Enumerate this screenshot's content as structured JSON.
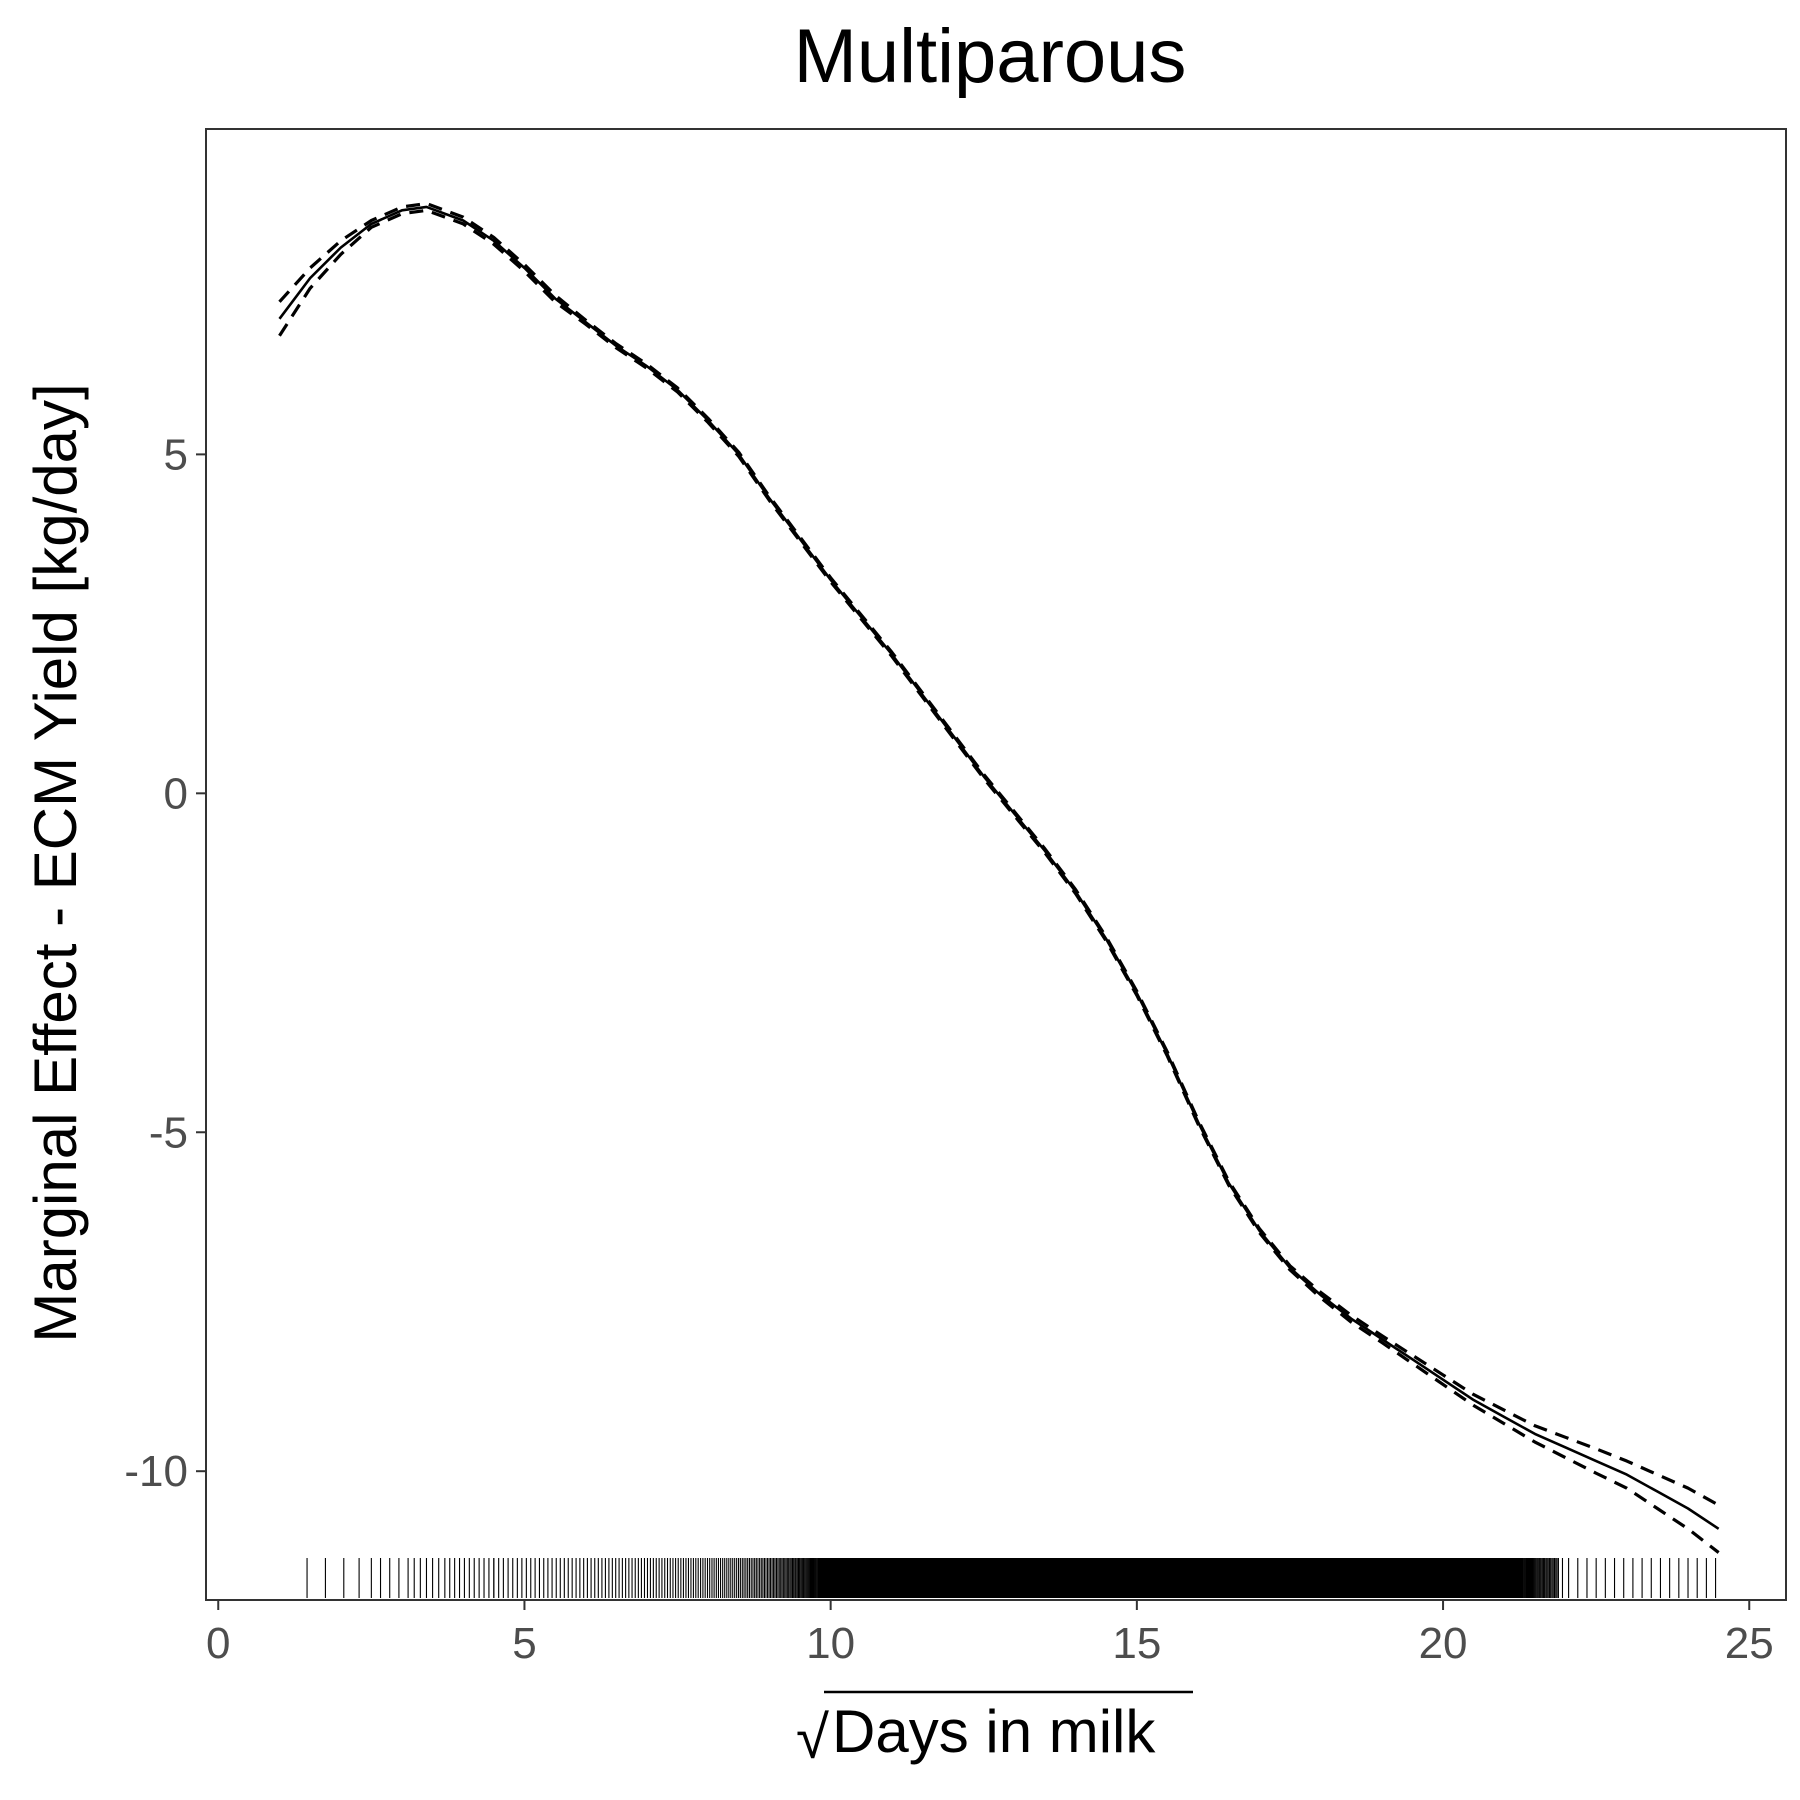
{
  "chart_data": {
    "type": "line",
    "title": "Multiparous",
    "xlabel": "Days in milk",
    "xlabel_prefix_symbol": "√",
    "ylabel": "Marginal Effect - ECM Yield [kg/day]",
    "xlim": [
      -0.2,
      25.6
    ],
    "ylim": [
      -11.9,
      9.8
    ],
    "x_ticks": [
      0,
      5,
      10,
      15,
      20,
      25
    ],
    "x_tick_labels": [
      "0",
      "5",
      "10",
      "15",
      "20",
      "25"
    ],
    "y_ticks": [
      5,
      0,
      -5,
      -10
    ],
    "y_tick_labels": [
      "5",
      "0",
      "-5",
      "-10"
    ],
    "grid": false,
    "legend": "none",
    "colors": {
      "line": "#000000",
      "panel_border": "#333333",
      "tick_label": "#4d4d4d"
    },
    "series": [
      {
        "role": "estimate",
        "style": "solid",
        "x": [
          1.0,
          1.5,
          2.0,
          2.5,
          3.0,
          3.4,
          4.0,
          4.5,
          5.0,
          5.5,
          6.0,
          6.5,
          7.0,
          7.5,
          8.0,
          8.5,
          9.0,
          9.5,
          10.0,
          10.5,
          11.0,
          11.5,
          12.0,
          12.5,
          13.0,
          13.5,
          14.0,
          14.5,
          15.0,
          15.5,
          16.0,
          16.5,
          17.0,
          17.5,
          18.0,
          18.5,
          19.0,
          19.5,
          20.0,
          20.5,
          21.0,
          21.5,
          22.0,
          22.5,
          23.0,
          23.5,
          24.0,
          24.5
        ],
        "values": [
          7.0,
          7.6,
          8.05,
          8.4,
          8.6,
          8.65,
          8.45,
          8.15,
          7.75,
          7.3,
          6.95,
          6.6,
          6.3,
          5.95,
          5.5,
          5.0,
          4.35,
          3.75,
          3.15,
          2.6,
          2.05,
          1.45,
          0.85,
          0.25,
          -0.3,
          -0.85,
          -1.45,
          -2.15,
          -2.95,
          -3.85,
          -4.85,
          -5.75,
          -6.45,
          -7.0,
          -7.4,
          -7.75,
          -8.05,
          -8.35,
          -8.65,
          -8.95,
          -9.2,
          -9.45,
          -9.65,
          -9.85,
          -10.05,
          -10.3,
          -10.55,
          -10.85
        ]
      },
      {
        "role": "upper-ci",
        "style": "dashed",
        "x": [
          1.0,
          1.5,
          2.0,
          2.5,
          3.0,
          3.4,
          4.0,
          4.5,
          5.0,
          5.5,
          6.0,
          6.5,
          7.0,
          7.5,
          8.0,
          8.5,
          9.0,
          9.5,
          10.0,
          10.5,
          11.0,
          11.5,
          12.0,
          12.5,
          13.0,
          13.5,
          14.0,
          14.5,
          15.0,
          15.5,
          16.0,
          16.5,
          17.0,
          17.5,
          18.0,
          18.5,
          19.0,
          19.5,
          20.0,
          20.5,
          21.0,
          21.5,
          22.0,
          22.5,
          23.0,
          23.5,
          24.0,
          24.5
        ],
        "values": [
          7.25,
          7.75,
          8.15,
          8.45,
          8.65,
          8.7,
          8.5,
          8.2,
          7.8,
          7.35,
          6.98,
          6.63,
          6.33,
          5.98,
          5.53,
          5.03,
          4.38,
          3.78,
          3.18,
          2.63,
          2.08,
          1.48,
          0.88,
          0.28,
          -0.27,
          -0.82,
          -1.42,
          -2.12,
          -2.92,
          -3.82,
          -4.82,
          -5.72,
          -6.42,
          -6.97,
          -7.36,
          -7.7,
          -8.0,
          -8.29,
          -8.58,
          -8.87,
          -9.1,
          -9.33,
          -9.5,
          -9.67,
          -9.85,
          -10.05,
          -10.25,
          -10.5
        ]
      },
      {
        "role": "lower-ci",
        "style": "dashed",
        "x": [
          1.0,
          1.5,
          2.0,
          2.5,
          3.0,
          3.4,
          4.0,
          4.5,
          5.0,
          5.5,
          6.0,
          6.5,
          7.0,
          7.5,
          8.0,
          8.5,
          9.0,
          9.5,
          10.0,
          10.5,
          11.0,
          11.5,
          12.0,
          12.5,
          13.0,
          13.5,
          14.0,
          14.5,
          15.0,
          15.5,
          16.0,
          16.5,
          17.0,
          17.5,
          18.0,
          18.5,
          19.0,
          19.5,
          20.0,
          20.5,
          21.0,
          21.5,
          22.0,
          22.5,
          23.0,
          23.5,
          24.0,
          24.5
        ],
        "values": [
          6.75,
          7.45,
          7.95,
          8.35,
          8.55,
          8.6,
          8.4,
          8.1,
          7.7,
          7.25,
          6.92,
          6.57,
          6.27,
          5.92,
          5.47,
          4.97,
          4.32,
          3.72,
          3.12,
          2.57,
          2.02,
          1.42,
          0.82,
          0.22,
          -0.33,
          -0.88,
          -1.48,
          -2.18,
          -2.98,
          -3.88,
          -4.88,
          -5.78,
          -6.48,
          -7.03,
          -7.44,
          -7.8,
          -8.1,
          -8.41,
          -8.72,
          -9.03,
          -9.3,
          -9.57,
          -9.8,
          -10.03,
          -10.25,
          -10.55,
          -10.85,
          -11.2
        ]
      }
    ],
    "rug": {
      "side": "bottom",
      "sparse_x": [
        1.45,
        1.75,
        2.05,
        2.3,
        2.5,
        2.65,
        2.8,
        2.95,
        3.1,
        3.2,
        3.3,
        3.4,
        3.5,
        3.6,
        3.7,
        3.78,
        3.86,
        3.94,
        4.02,
        4.1,
        4.18,
        4.26,
        4.34,
        4.42,
        4.5,
        21.95,
        22.05,
        22.2,
        22.35,
        22.5,
        22.65,
        22.8,
        22.95,
        23.1,
        23.25,
        23.4,
        23.55,
        23.7,
        23.85,
        24.0,
        24.15,
        24.3,
        24.45
      ],
      "dense_from": 4.5,
      "dense_to": 21.9,
      "solid_from": 9.8,
      "solid_to": 21.3
    }
  }
}
